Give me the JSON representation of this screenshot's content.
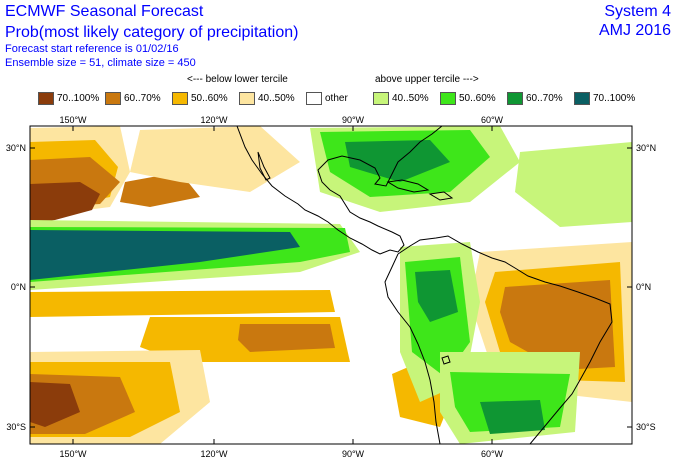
{
  "header": {
    "title": "ECMWF Seasonal Forecast",
    "subtitle": "Prob(most likely category of precipitation)",
    "forecast_start": "Forecast start reference is 01/02/16",
    "ensemble": "Ensemble size = 51, climate size = 450",
    "system": "System 4",
    "season": "AMJ 2016"
  },
  "legend": {
    "below_label": "<--- below lower tercile",
    "above_label": "above upper tercile --->",
    "items": [
      {
        "label": "70..100%",
        "color": "#8b3c0b"
      },
      {
        "label": "60..70%",
        "color": "#c9780f"
      },
      {
        "label": "50..60%",
        "color": "#f5b800"
      },
      {
        "label": "40..50%",
        "color": "#fde5a0"
      },
      {
        "label": "other",
        "color": "#ffffff"
      },
      {
        "label": "40..50%",
        "color": "#c7f57a"
      },
      {
        "label": "50..60%",
        "color": "#3ee61a"
      },
      {
        "label": "60..70%",
        "color": "#0f9633"
      },
      {
        "label": "70..100%",
        "color": "#0a5f63"
      }
    ]
  },
  "map": {
    "lon_labels": [
      "150°W",
      "120°W",
      "90°W",
      "60°W"
    ],
    "lat_labels": [
      "30°N",
      "0°N",
      "30°S"
    ]
  }
}
